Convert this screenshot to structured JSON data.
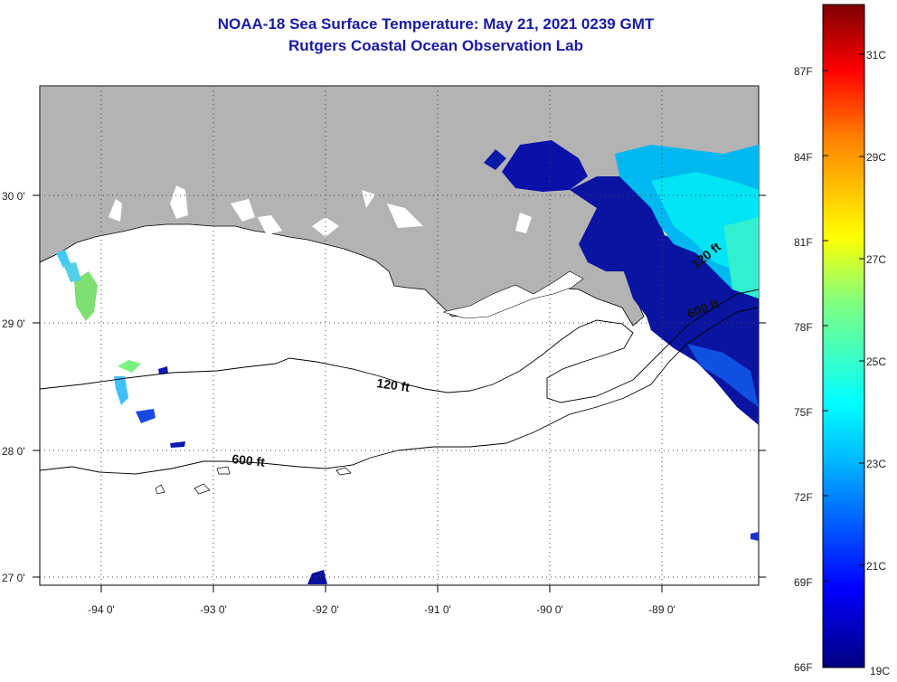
{
  "title": "NOAA-18 Sea Surface Temperature:  May 21, 2021 0239 GMT",
  "subtitle": "Rutgers Coastal Ocean Observation Lab",
  "map": {
    "lon_labels": [
      "-94 0'",
      "-93 0'",
      "-92 0'",
      "-91 0'",
      "-90 0'",
      "-89 0'"
    ],
    "lat_labels": [
      "30 0'",
      "29 0'",
      "28 0'",
      "27 0'"
    ],
    "contours": [
      "120 ft",
      "600 ft",
      "120 ft",
      "600 ft"
    ],
    "colors": {
      "land": "#b3b3b3",
      "ocean": "#ffffff",
      "cloud_gap": "#ffffff"
    }
  },
  "colorbar": {
    "fahrenheit": [
      "87F",
      "84F",
      "81F",
      "78F",
      "75F",
      "72F",
      "69F",
      "66F"
    ],
    "celsius": [
      "31C",
      "29C",
      "27C",
      "25C",
      "23C",
      "21C",
      "19C"
    ],
    "range_c": [
      19,
      32
    ]
  }
}
